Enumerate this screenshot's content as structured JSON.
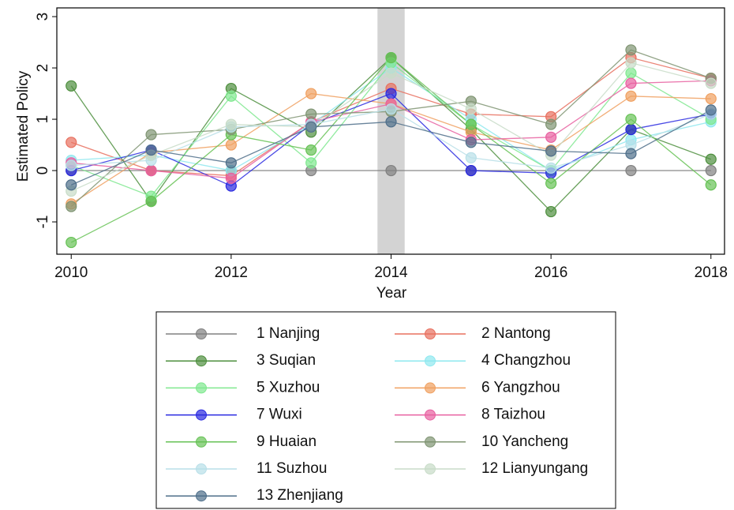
{
  "chart_data": {
    "type": "line",
    "x_label": "Year",
    "y_label": "Estimated Policy",
    "x": [
      2010,
      2011,
      2012,
      2013,
      2014,
      2015,
      2016,
      2017,
      2018
    ],
    "xlim": [
      2009.82,
      2018.17
    ],
    "xticks": [
      2010,
      2012,
      2014,
      2016,
      2018
    ],
    "ylim": [
      -1.63,
      3.17
    ],
    "yticks": [
      3,
      2,
      1,
      0,
      -1
    ],
    "shaded_x": [
      2013.83,
      2014.17
    ],
    "legend": "bottom",
    "series": [
      {
        "name": "1 Nanjing",
        "color": "#808080",
        "values": [
          0,
          0,
          0,
          0,
          0,
          0,
          0,
          0,
          0
        ]
      },
      {
        "name": "2 Nantong",
        "color": "#e8705f",
        "values": [
          0.55,
          0.0,
          -0.1,
          0.95,
          1.6,
          1.1,
          1.05,
          2.2,
          1.8
        ]
      },
      {
        "name": "3 Suqian",
        "color": "#4e8f3e",
        "values": [
          1.65,
          -0.6,
          1.6,
          0.75,
          2.2,
          0.8,
          -0.8,
          0.8,
          0.22
        ]
      },
      {
        "name": "4 Changzhou",
        "color": "#8ee8ef",
        "values": [
          0.2,
          0.3,
          0.0,
          0.9,
          2.0,
          1.0,
          0.0,
          0.6,
          0.95
        ]
      },
      {
        "name": "5 Xuzhou",
        "color": "#7fe88f",
        "values": [
          0.1,
          -0.5,
          1.45,
          0.15,
          2.1,
          0.9,
          0.0,
          1.9,
          1.0
        ]
      },
      {
        "name": "6 Yangzhou",
        "color": "#f0a060",
        "values": [
          -0.65,
          0.35,
          0.5,
          1.5,
          1.3,
          0.75,
          0.4,
          1.45,
          1.4
        ]
      },
      {
        "name": "7 Wuxi",
        "color": "#2a2ae0",
        "values": [
          0,
          0.4,
          -0.3,
          0.9,
          1.5,
          0,
          -0.05,
          0.8,
          1.1
        ]
      },
      {
        "name": "8 Taizhou",
        "color": "#e860a0",
        "values": [
          0.15,
          0,
          -0.15,
          0.95,
          1.3,
          0.6,
          0.65,
          1.7,
          1.75
        ]
      },
      {
        "name": "9 Huaian",
        "color": "#66c255",
        "values": [
          -1.4,
          -0.6,
          0.7,
          0.4,
          2.2,
          0.9,
          -0.25,
          1.0,
          -0.28
        ]
      },
      {
        "name": "10 Yancheng",
        "color": "#7f9472",
        "values": [
          -0.7,
          0.7,
          0.8,
          1.1,
          1.15,
          1.35,
          0.9,
          2.35,
          1.8
        ]
      },
      {
        "name": "11 Suzhou",
        "color": "#b8dfe8",
        "values": [
          0.1,
          0.2,
          0.85,
          0.9,
          1.2,
          0.25,
          0.05,
          0.5,
          1.1
        ]
      },
      {
        "name": "12 Lianyungang",
        "color": "#c8dcc8",
        "values": [
          -0.4,
          0.3,
          0.9,
          0.85,
          1.9,
          1.2,
          0.3,
          2.1,
          1.7
        ]
      },
      {
        "name": "13 Zhenjiang",
        "color": "#4f6f8a",
        "values": [
          -0.28,
          0.4,
          0.15,
          0.85,
          0.95,
          0.55,
          0.38,
          0.33,
          1.18
        ]
      }
    ]
  }
}
